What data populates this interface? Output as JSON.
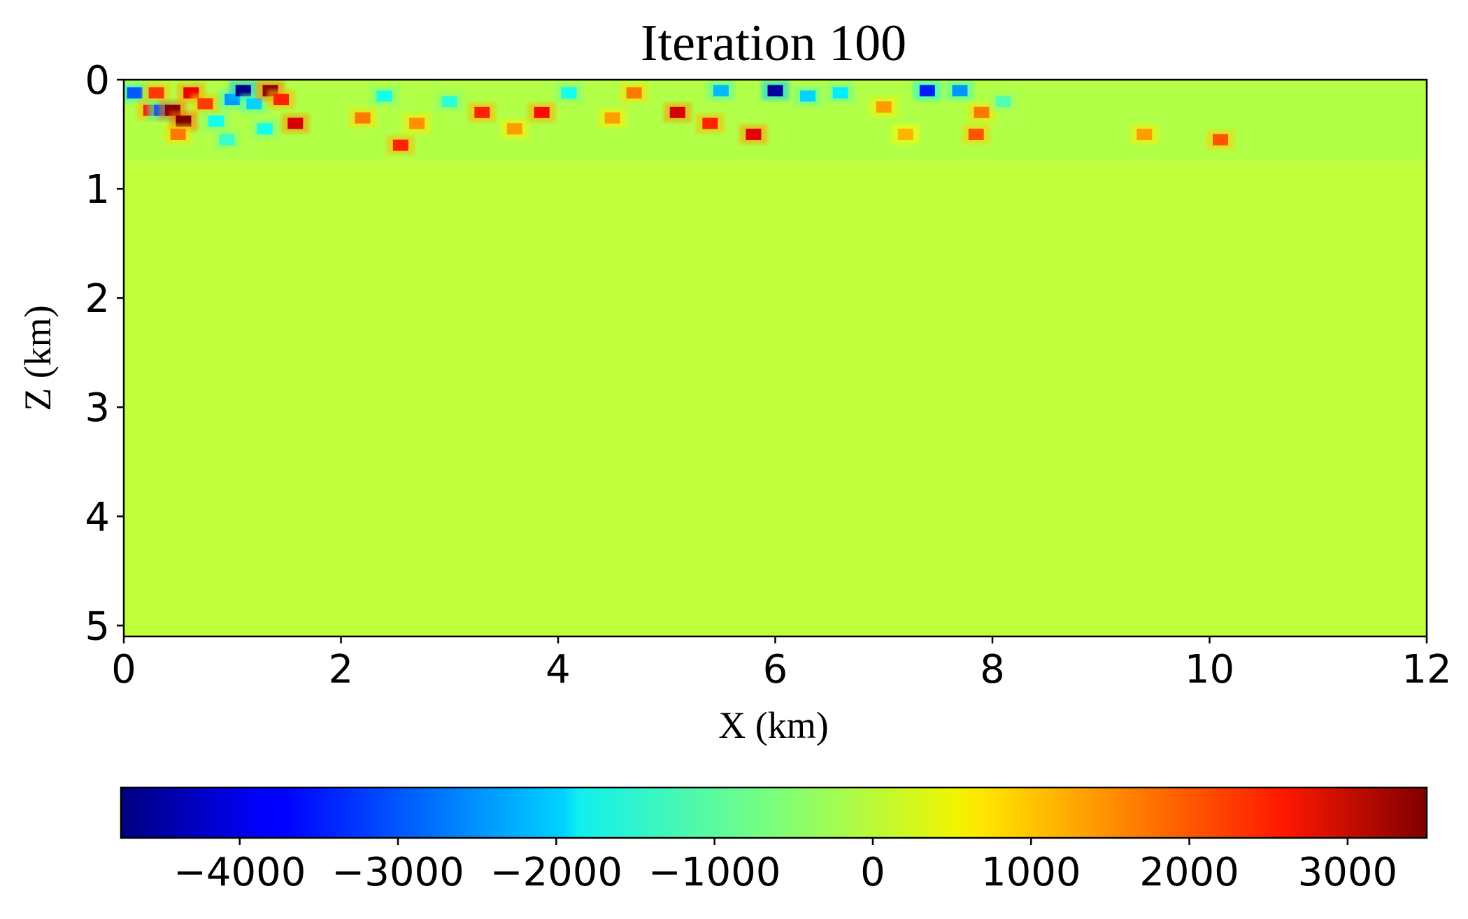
{
  "chart_data": [
    {
      "type": "heatmap",
      "title": "Iteration 100",
      "xlabel": "X (km)",
      "ylabel": "Z (km)",
      "xlim": [
        0,
        12
      ],
      "ylim": [
        5.1,
        0
      ],
      "y_inverted": true,
      "xticks": [
        "0",
        "2",
        "4",
        "6",
        "8",
        "10",
        "12"
      ],
      "yticks": [
        "0",
        "1",
        "2",
        "3",
        "4",
        "5"
      ],
      "colormap": "jet",
      "background_value": 0,
      "description_of_field": "Model update concentrated in the shallow zone z < 0.8 km; remainder near 0",
      "anomalies": [
        {
          "x": 0.1,
          "z": 0.12,
          "value": -3000
        },
        {
          "x": 0.25,
          "z": 0.28,
          "value": 2200
        },
        {
          "x": 0.3,
          "z": 0.12,
          "value": 2000
        },
        {
          "x": 0.35,
          "z": 0.28,
          "value": -3000
        },
        {
          "x": 0.45,
          "z": 0.28,
          "value": 3400
        },
        {
          "x": 0.55,
          "z": 0.38,
          "value": 3500
        },
        {
          "x": 0.5,
          "z": 0.5,
          "value": 1500
        },
        {
          "x": 0.62,
          "z": 0.12,
          "value": 2600
        },
        {
          "x": 0.75,
          "z": 0.22,
          "value": 2000
        },
        {
          "x": 0.85,
          "z": 0.38,
          "value": -1500
        },
        {
          "x": 1.0,
          "z": 0.18,
          "value": -2500
        },
        {
          "x": 1.1,
          "z": 0.1,
          "value": -4700
        },
        {
          "x": 1.2,
          "z": 0.22,
          "value": -2000
        },
        {
          "x": 1.35,
          "z": 0.1,
          "value": 3400
        },
        {
          "x": 1.45,
          "z": 0.18,
          "value": 2200
        },
        {
          "x": 1.58,
          "z": 0.4,
          "value": 2800
        },
        {
          "x": 1.3,
          "z": 0.45,
          "value": -1500
        },
        {
          "x": 0.95,
          "z": 0.55,
          "value": -1200
        },
        {
          "x": 2.2,
          "z": 0.35,
          "value": 1500
        },
        {
          "x": 2.4,
          "z": 0.15,
          "value": -1500
        },
        {
          "x": 2.55,
          "z": 0.6,
          "value": 2200
        },
        {
          "x": 2.7,
          "z": 0.4,
          "value": 1300
        },
        {
          "x": 3.0,
          "z": 0.2,
          "value": -1300
        },
        {
          "x": 3.3,
          "z": 0.3,
          "value": 2200
        },
        {
          "x": 3.6,
          "z": 0.45,
          "value": 1200
        },
        {
          "x": 3.85,
          "z": 0.3,
          "value": 2400
        },
        {
          "x": 4.1,
          "z": 0.12,
          "value": -1500
        },
        {
          "x": 4.5,
          "z": 0.35,
          "value": 1200
        },
        {
          "x": 4.7,
          "z": 0.12,
          "value": 1500
        },
        {
          "x": 5.1,
          "z": 0.3,
          "value": 2800
        },
        {
          "x": 5.4,
          "z": 0.4,
          "value": 2200
        },
        {
          "x": 5.8,
          "z": 0.5,
          "value": 2700
        },
        {
          "x": 5.5,
          "z": 0.1,
          "value": -2200
        },
        {
          "x": 6.0,
          "z": 0.1,
          "value": -4500
        },
        {
          "x": 6.3,
          "z": 0.15,
          "value": -2000
        },
        {
          "x": 6.6,
          "z": 0.12,
          "value": -1800
        },
        {
          "x": 7.0,
          "z": 0.25,
          "value": 1200
        },
        {
          "x": 7.2,
          "z": 0.5,
          "value": 1000
        },
        {
          "x": 7.4,
          "z": 0.1,
          "value": -3500
        },
        {
          "x": 7.7,
          "z": 0.1,
          "value": -2500
        },
        {
          "x": 7.85,
          "z": 0.5,
          "value": 1800
        },
        {
          "x": 7.9,
          "z": 0.3,
          "value": 1500
        },
        {
          "x": 8.1,
          "z": 0.2,
          "value": -1000
        },
        {
          "x": 9.4,
          "z": 0.5,
          "value": 1200
        },
        {
          "x": 10.1,
          "z": 0.55,
          "value": 1800
        }
      ]
    },
    {
      "type": "colorbar",
      "orientation": "horizontal",
      "range": [
        -4750,
        3500
      ],
      "ticks": [
        -4000,
        -3000,
        -2000,
        -1000,
        0,
        1000,
        2000,
        3000
      ],
      "tick_labels": [
        "−4000",
        "−3000",
        "−2000",
        "−1000",
        "0",
        "1000",
        "2000",
        "3000"
      ]
    }
  ]
}
